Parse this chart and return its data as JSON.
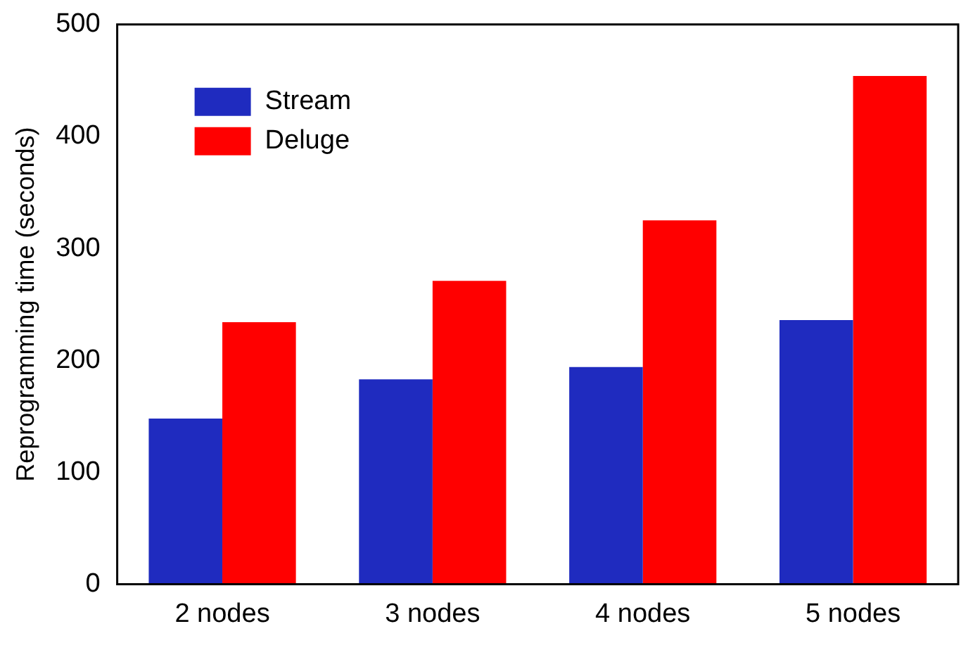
{
  "chart_data": {
    "type": "bar",
    "ylabel": "Reprogramming time (seconds)",
    "categories": [
      "2 nodes",
      "3 nodes",
      "4 nodes",
      "5 nodes"
    ],
    "series": [
      {
        "name": "Stream",
        "color": "#1f2bbf",
        "values": [
          148,
          183,
          194,
          236
        ]
      },
      {
        "name": "Deluge",
        "color": "#ff0000",
        "values": [
          234,
          271,
          325,
          454
        ]
      }
    ],
    "ylim": [
      0,
      500
    ],
    "yticks": [
      0,
      100,
      200,
      300,
      400,
      500
    ],
    "grid": false,
    "legend": "top left"
  }
}
